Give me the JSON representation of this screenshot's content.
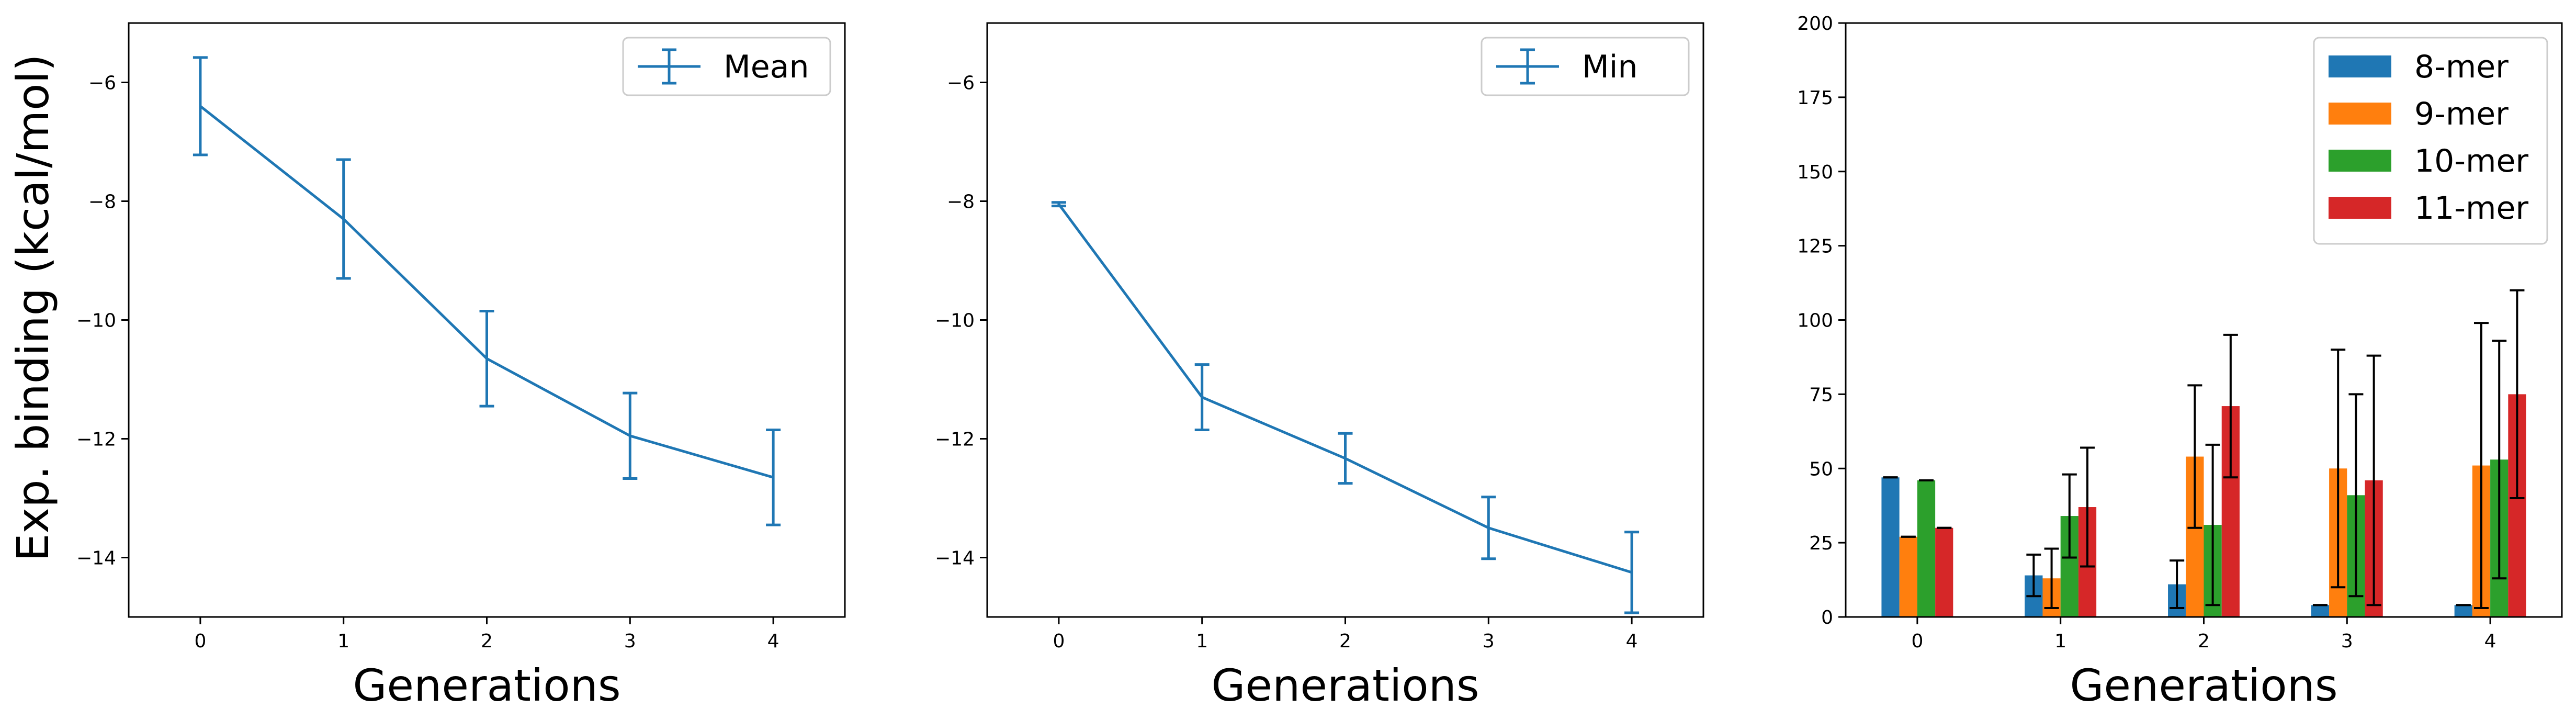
{
  "figure": {
    "ylabel": "Exp. binding (kcal/mol)"
  },
  "chart_data": [
    {
      "type": "line",
      "title": "",
      "xlabel": "Generations",
      "ylabel": "Exp. binding (kcal/mol)",
      "x": [
        0,
        1,
        2,
        3,
        4
      ],
      "xlim": [
        -0.5,
        4.5
      ],
      "ylim": [
        -15,
        -5
      ],
      "yticks": [
        -14,
        -12,
        -10,
        -8,
        -6
      ],
      "grid": false,
      "legend_position": "top-right",
      "color": "#1f77b4",
      "series": [
        {
          "name": "Mean",
          "values": [
            -6.4,
            -8.3,
            -10.65,
            -11.95,
            -12.65
          ],
          "errors": [
            0.82,
            1.0,
            0.8,
            0.72,
            0.8
          ]
        }
      ]
    },
    {
      "type": "line",
      "title": "",
      "xlabel": "Generations",
      "ylabel": "",
      "x": [
        0,
        1,
        2,
        3,
        4
      ],
      "xlim": [
        -0.5,
        4.5
      ],
      "ylim": [
        -15,
        -5
      ],
      "yticks": [
        -14,
        -12,
        -10,
        -8,
        -6
      ],
      "grid": false,
      "legend_position": "top-right",
      "color": "#1f77b4",
      "series": [
        {
          "name": "Min",
          "values": [
            -8.05,
            -11.3,
            -12.33,
            -13.5,
            -14.25
          ],
          "errors": [
            0.03,
            0.55,
            0.42,
            0.52,
            0.68
          ]
        }
      ]
    },
    {
      "type": "bar",
      "title": "",
      "xlabel": "Generations",
      "ylabel": "",
      "categories": [
        "0",
        "1",
        "2",
        "3",
        "4"
      ],
      "ylim": [
        0,
        200
      ],
      "yticks": [
        0,
        25,
        50,
        75,
        100,
        125,
        150,
        175,
        200
      ],
      "grid": false,
      "legend_position": "top-right",
      "series": [
        {
          "name": "8-mer",
          "color": "#1f77b4",
          "values": [
            47,
            14,
            11,
            4,
            4
          ],
          "errors": [
            0,
            7,
            8,
            0,
            0
          ]
        },
        {
          "name": "9-mer",
          "color": "#ff7f0e",
          "values": [
            27,
            13,
            54,
            50,
            51
          ],
          "errors": [
            0,
            10,
            24,
            40,
            48
          ]
        },
        {
          "name": "10-mer",
          "color": "#2ca02c",
          "values": [
            46,
            34,
            31,
            41,
            53
          ],
          "errors": [
            0,
            14,
            27,
            34,
            40
          ]
        },
        {
          "name": "11-mer",
          "color": "#d62728",
          "values": [
            30,
            37,
            71,
            46,
            75
          ],
          "errors": [
            0,
            20,
            24,
            42,
            35
          ]
        }
      ]
    }
  ]
}
